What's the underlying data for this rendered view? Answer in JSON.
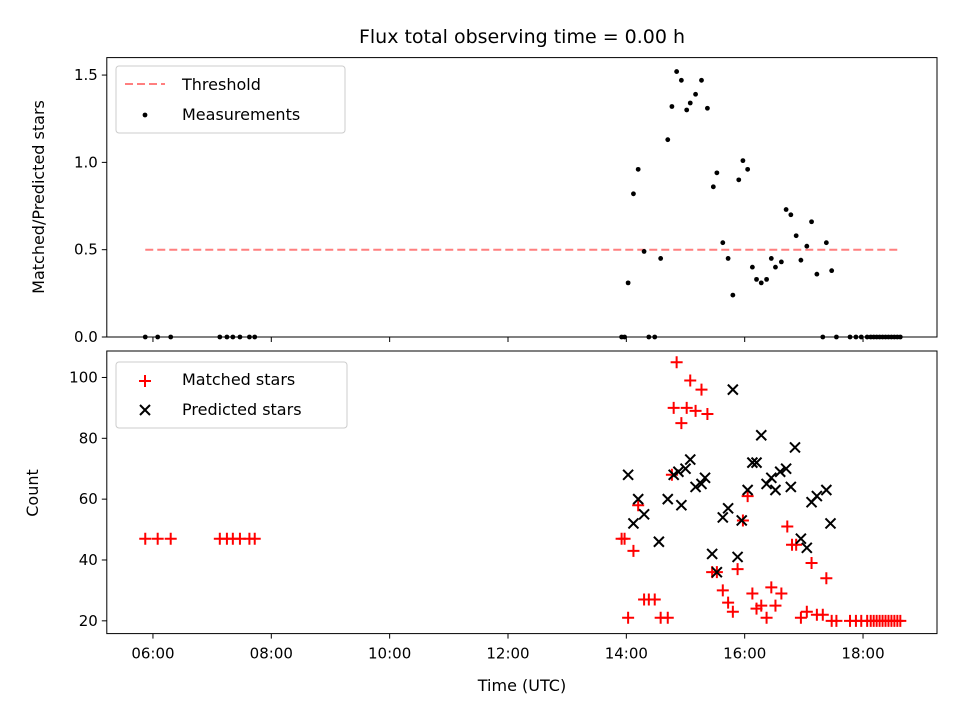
{
  "chart_data": {
    "title": "Flux total observing time = 0.00 h",
    "xlabel": "Time (UTC)",
    "x_tick_labels": [
      "06:00",
      "08:00",
      "10:00",
      "12:00",
      "14:00",
      "16:00",
      "18:00"
    ],
    "x_tick_hours": [
      6,
      8,
      10,
      12,
      14,
      16,
      18
    ],
    "xlim_hours": [
      5.22,
      19.25
    ],
    "colors": {
      "threshold": "#ff7f7f",
      "measurements": "#000000",
      "matched": "#ff0000",
      "predicted": "#000000"
    },
    "panels": [
      {
        "type": "scatter",
        "ylabel": "Matched/Predicted stars",
        "ylim": [
          0,
          1.6
        ],
        "yticks": [
          0.0,
          0.5,
          1.0,
          1.5
        ],
        "ytick_labels": [
          "0.0",
          "0.5",
          "1.0",
          "1.5"
        ],
        "legend": {
          "position": "upper-left",
          "entries": [
            "Threshold",
            "Measurements"
          ]
        },
        "threshold": {
          "name": "Threshold",
          "value": 0.5,
          "x_start": 5.87,
          "x_end": 18.63
        },
        "series": [
          {
            "name": "Measurements",
            "points": [
              [
                5.87,
                0
              ],
              [
                6.08,
                0
              ],
              [
                6.3,
                0
              ],
              [
                7.13,
                0
              ],
              [
                7.25,
                0
              ],
              [
                7.35,
                0
              ],
              [
                7.47,
                0
              ],
              [
                7.63,
                0
              ],
              [
                7.72,
                0
              ],
              [
                13.92,
                0
              ],
              [
                13.97,
                0
              ],
              [
                14.03,
                0.31
              ],
              [
                14.12,
                0.82
              ],
              [
                14.2,
                0.96
              ],
              [
                14.3,
                0.49
              ],
              [
                14.38,
                0
              ],
              [
                14.48,
                0
              ],
              [
                14.58,
                0.45
              ],
              [
                14.7,
                1.13
              ],
              [
                14.77,
                1.32
              ],
              [
                14.85,
                1.52
              ],
              [
                14.93,
                1.47
              ],
              [
                15.02,
                1.3
              ],
              [
                15.08,
                1.34
              ],
              [
                15.17,
                1.39
              ],
              [
                15.27,
                1.47
              ],
              [
                15.37,
                1.31
              ],
              [
                15.47,
                0.86
              ],
              [
                15.53,
                0.94
              ],
              [
                15.63,
                0.54
              ],
              [
                15.72,
                0.45
              ],
              [
                15.8,
                0.24
              ],
              [
                15.9,
                0.9
              ],
              [
                15.97,
                1.01
              ],
              [
                16.05,
                0.96
              ],
              [
                16.13,
                0.4
              ],
              [
                16.2,
                0.33
              ],
              [
                16.28,
                0.31
              ],
              [
                16.37,
                0.33
              ],
              [
                16.45,
                0.45
              ],
              [
                16.52,
                0.4
              ],
              [
                16.62,
                0.43
              ],
              [
                16.7,
                0.73
              ],
              [
                16.78,
                0.7
              ],
              [
                16.87,
                0.58
              ],
              [
                16.95,
                0.44
              ],
              [
                17.05,
                0.52
              ],
              [
                17.13,
                0.66
              ],
              [
                17.22,
                0.36
              ],
              [
                17.32,
                0
              ],
              [
                17.38,
                0.54
              ],
              [
                17.47,
                0.38
              ],
              [
                17.55,
                0
              ],
              [
                17.78,
                0
              ],
              [
                17.88,
                0
              ],
              [
                17.97,
                0
              ],
              [
                18.07,
                0
              ],
              [
                18.13,
                0
              ],
              [
                18.18,
                0
              ],
              [
                18.23,
                0
              ],
              [
                18.28,
                0
              ],
              [
                18.33,
                0
              ],
              [
                18.38,
                0
              ],
              [
                18.43,
                0
              ],
              [
                18.48,
                0
              ],
              [
                18.53,
                0
              ],
              [
                18.58,
                0
              ],
              [
                18.63,
                0
              ]
            ]
          }
        ]
      },
      {
        "type": "scatter",
        "ylabel": "Count",
        "ylim": [
          15.8,
          108.7
        ],
        "yticks": [
          20,
          40,
          60,
          80,
          100
        ],
        "ytick_labels": [
          "20",
          "40",
          "60",
          "80",
          "100"
        ],
        "legend": {
          "position": "upper-left",
          "entries": [
            "Matched stars",
            "Predicted stars"
          ]
        },
        "series": [
          {
            "name": "Matched stars",
            "marker": "plus",
            "points": [
              [
                5.87,
                47
              ],
              [
                6.08,
                47
              ],
              [
                6.3,
                47
              ],
              [
                7.13,
                47
              ],
              [
                7.25,
                47
              ],
              [
                7.35,
                47
              ],
              [
                7.47,
                47
              ],
              [
                7.63,
                47
              ],
              [
                7.72,
                47
              ],
              [
                13.92,
                47
              ],
              [
                13.97,
                47
              ],
              [
                14.03,
                21
              ],
              [
                14.12,
                43
              ],
              [
                14.2,
                58
              ],
              [
                14.3,
                27
              ],
              [
                14.38,
                27
              ],
              [
                14.48,
                27
              ],
              [
                14.58,
                21
              ],
              [
                14.7,
                21
              ],
              [
                14.77,
                68
              ],
              [
                14.8,
                90
              ],
              [
                14.85,
                105
              ],
              [
                14.93,
                85
              ],
              [
                15.02,
                90
              ],
              [
                15.08,
                99
              ],
              [
                15.17,
                89
              ],
              [
                15.27,
                96
              ],
              [
                15.37,
                88
              ],
              [
                15.45,
                36
              ],
              [
                15.53,
                36
              ],
              [
                15.63,
                30
              ],
              [
                15.72,
                26
              ],
              [
                15.8,
                23
              ],
              [
                15.88,
                37
              ],
              [
                15.97,
                53
              ],
              [
                16.05,
                61
              ],
              [
                16.13,
                29
              ],
              [
                16.2,
                24
              ],
              [
                16.28,
                25
              ],
              [
                16.37,
                21
              ],
              [
                16.45,
                31
              ],
              [
                16.52,
                25
              ],
              [
                16.62,
                29
              ],
              [
                16.72,
                51
              ],
              [
                16.8,
                45
              ],
              [
                16.87,
                45
              ],
              [
                16.95,
                21
              ],
              [
                17.05,
                23
              ],
              [
                17.13,
                39
              ],
              [
                17.22,
                22
              ],
              [
                17.32,
                22
              ],
              [
                17.38,
                34
              ],
              [
                17.47,
                20
              ],
              [
                17.55,
                20
              ],
              [
                17.78,
                20
              ],
              [
                17.88,
                20
              ],
              [
                17.97,
                20
              ],
              [
                18.07,
                20
              ],
              [
                18.13,
                20
              ],
              [
                18.18,
                20
              ],
              [
                18.23,
                20
              ],
              [
                18.28,
                20
              ],
              [
                18.33,
                20
              ],
              [
                18.38,
                20
              ],
              [
                18.43,
                20
              ],
              [
                18.48,
                20
              ],
              [
                18.53,
                20
              ],
              [
                18.58,
                20
              ],
              [
                18.63,
                20
              ]
            ]
          },
          {
            "name": "Predicted stars",
            "marker": "x",
            "points": [
              [
                14.03,
                68
              ],
              [
                14.12,
                52
              ],
              [
                14.2,
                60
              ],
              [
                14.3,
                55
              ],
              [
                14.55,
                46
              ],
              [
                14.7,
                60
              ],
              [
                14.8,
                68
              ],
              [
                14.88,
                69
              ],
              [
                14.93,
                58
              ],
              [
                15.0,
                70
              ],
              [
                15.08,
                73
              ],
              [
                15.17,
                64
              ],
              [
                15.27,
                65
              ],
              [
                15.33,
                67
              ],
              [
                15.45,
                42
              ],
              [
                15.53,
                36
              ],
              [
                15.63,
                54
              ],
              [
                15.72,
                57
              ],
              [
                15.8,
                96
              ],
              [
                15.88,
                41
              ],
              [
                15.95,
                53
              ],
              [
                16.05,
                63
              ],
              [
                16.13,
                72
              ],
              [
                16.2,
                72
              ],
              [
                16.28,
                81
              ],
              [
                16.37,
                65
              ],
              [
                16.45,
                67
              ],
              [
                16.52,
                63
              ],
              [
                16.6,
                69
              ],
              [
                16.7,
                70
              ],
              [
                16.78,
                64
              ],
              [
                16.85,
                77
              ],
              [
                16.95,
                47
              ],
              [
                17.05,
                44
              ],
              [
                17.13,
                59
              ],
              [
                17.22,
                61
              ],
              [
                17.38,
                63
              ],
              [
                17.45,
                52
              ]
            ]
          }
        ]
      }
    ]
  }
}
